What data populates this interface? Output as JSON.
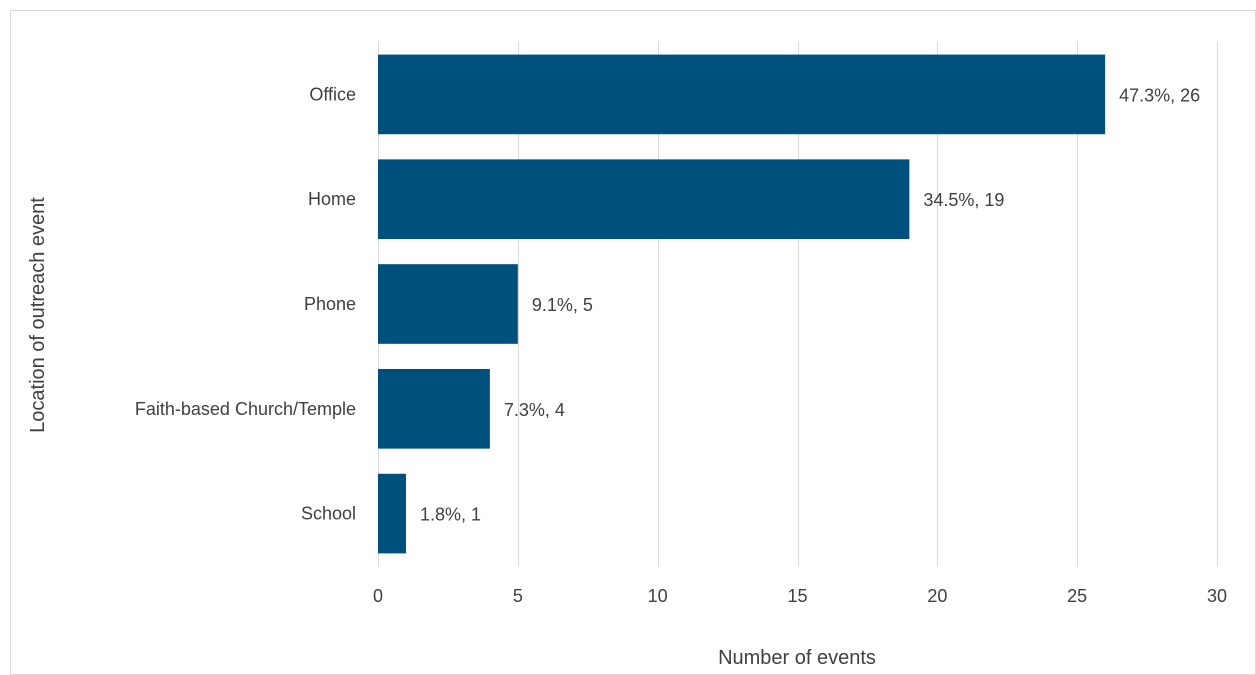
{
  "chart_data": {
    "type": "bar",
    "orientation": "horizontal",
    "categories": [
      "Office",
      "Home",
      "Phone",
      "Faith-based Church/Temple",
      "School"
    ],
    "values": [
      26,
      19,
      5,
      4,
      1
    ],
    "data_labels": [
      "47.3%, 26",
      "34.5%, 19",
      "9.1%, 5",
      "7.3%, 4",
      "1.8%, 1"
    ],
    "xlabel": "Number of events",
    "ylabel": "Location of outreach event",
    "xlim": [
      0,
      30
    ],
    "xticks": [
      0,
      5,
      10,
      15,
      20,
      25,
      30
    ],
    "grid": true,
    "legend": "none",
    "colors": {
      "bar": "#00507E",
      "grid": "#D9D9D9",
      "text": "#404040",
      "border": "#D9D9D9"
    }
  }
}
